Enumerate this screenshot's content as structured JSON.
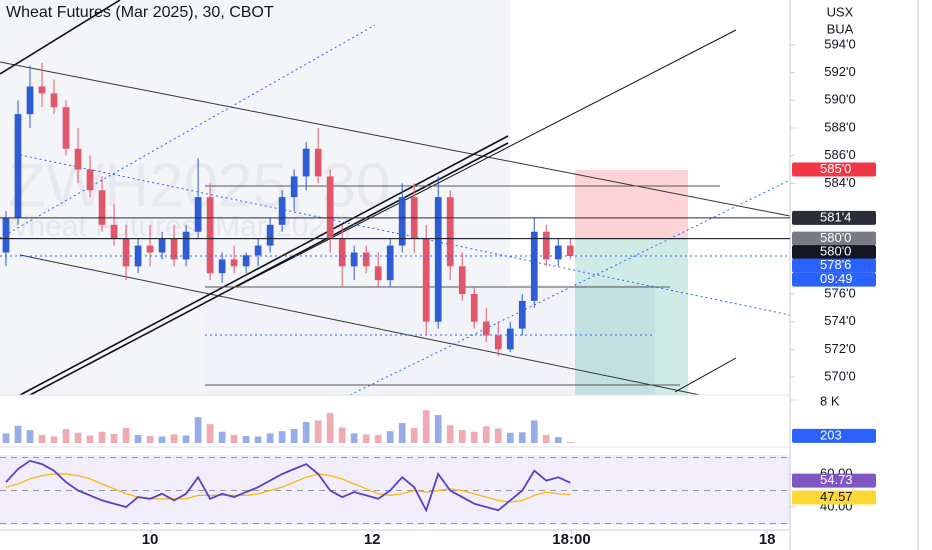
{
  "chart_data": {
    "type": "candlestick",
    "title": "Wheat Futures (Mar 2025), 30, CBOT",
    "watermark": [
      "ZWH2025, 30",
      "Wheat Futures (Mar 2025)"
    ],
    "axis_labels": [
      "USX",
      "BUA"
    ],
    "up_color": "#2f5bd3",
    "down_color": "#e0566a",
    "ohlc": [
      [
        579,
        582,
        578,
        581.5
      ],
      [
        581.5,
        590,
        581,
        589
      ],
      [
        589,
        592.5,
        588,
        591
      ],
      [
        591,
        592.7,
        589.5,
        590.5
      ],
      [
        590.5,
        591.5,
        589,
        589.5
      ],
      [
        589.5,
        590,
        586,
        586.5
      ],
      [
        586.5,
        588,
        584,
        585
      ],
      [
        585,
        586,
        583,
        583.5
      ],
      [
        583.5,
        584.5,
        580.5,
        581
      ],
      [
        581,
        582.5,
        579.5,
        580
      ],
      [
        580,
        581,
        577,
        578
      ],
      [
        578,
        580,
        577.5,
        579.5
      ],
      [
        579.5,
        581,
        578,
        579
      ],
      [
        579,
        580.5,
        578.5,
        580
      ],
      [
        580,
        581,
        578,
        578.5
      ],
      [
        578.5,
        581,
        578,
        580.5
      ],
      [
        580.5,
        585.8,
        580,
        583
      ],
      [
        583,
        584,
        577,
        577.5
      ],
      [
        577.5,
        579,
        576.8,
        578.5
      ],
      [
        578.5,
        579.5,
        577.5,
        578
      ],
      [
        578,
        579,
        577.5,
        578.8
      ],
      [
        578.8,
        580,
        578,
        579.5
      ],
      [
        579.5,
        581.5,
        579,
        581
      ],
      [
        581,
        583.5,
        580.5,
        583
      ],
      [
        583,
        585,
        582,
        584.5
      ],
      [
        584.5,
        587,
        583.5,
        586.5
      ],
      [
        586.5,
        588,
        584,
        584.5
      ],
      [
        584.5,
        585,
        579,
        580
      ],
      [
        580,
        581,
        576.5,
        578
      ],
      [
        578,
        579.5,
        577,
        579
      ],
      [
        579,
        579.5,
        577.5,
        578
      ],
      [
        578,
        579,
        576.5,
        577
      ],
      [
        577,
        580,
        576.5,
        579.5
      ],
      [
        579.5,
        584,
        579,
        583
      ],
      [
        583,
        584,
        579,
        580
      ],
      [
        580,
        581,
        573,
        574
      ],
      [
        574,
        584.5,
        573.5,
        583
      ],
      [
        583,
        583.5,
        577,
        578
      ],
      [
        578,
        579,
        575.5,
        576
      ],
      [
        576,
        576.5,
        573.5,
        574
      ],
      [
        574,
        575,
        572.5,
        573
      ],
      [
        573,
        574,
        571.5,
        572
      ],
      [
        572,
        574,
        571.8,
        573.5
      ],
      [
        573.5,
        576,
        573,
        575.5
      ],
      [
        575.5,
        581.5,
        575,
        580.5
      ],
      [
        580.5,
        581,
        578,
        578.5
      ],
      [
        578.5,
        580,
        578,
        579.5
      ],
      [
        579.5,
        580,
        578.5,
        578.75
      ]
    ],
    "ylim": [
      568.7,
      597.25
    ],
    "yticks": [
      {
        "value": 594,
        "label": "594'0"
      },
      {
        "value": 592,
        "label": "592'0"
      },
      {
        "value": 590,
        "label": "590'0"
      },
      {
        "value": 588,
        "label": "588'0"
      },
      {
        "value": 586,
        "label": "586'0"
      },
      {
        "value": 584,
        "label": "584'0"
      },
      {
        "value": 576,
        "label": "576'0"
      },
      {
        "value": 574,
        "label": "574'0"
      },
      {
        "value": 572,
        "label": "572'0"
      },
      {
        "value": 570,
        "label": "570'0"
      }
    ],
    "xlim": [
      -0.5,
      65.3
    ],
    "xticks": [
      {
        "value": 12,
        "label": "10"
      },
      {
        "value": 30.5,
        "label": "12"
      },
      {
        "value": 47.1,
        "label": "18:00"
      },
      {
        "value": 63.4,
        "label": "18"
      }
    ],
    "price_tags": [
      {
        "value": 585,
        "label": "585'0",
        "color": "#f23645"
      },
      {
        "value": 581.5,
        "label": "581'4",
        "color": "#2a2e39"
      },
      {
        "value": 580,
        "label": "580'0",
        "color": "#787b86"
      },
      {
        "value": 580,
        "label": "580'0",
        "color": "#131722"
      },
      {
        "value": 578.75,
        "label": "578'6",
        "color": "#2962ff"
      }
    ],
    "countdown": "09:49",
    "volume": {
      "values": [
        1800,
        3200,
        2400,
        1500,
        1200,
        2600,
        1900,
        1400,
        2100,
        1700,
        2800,
        1500,
        1300,
        1200,
        1600,
        1400,
        4800,
        3500,
        2100,
        1500,
        1300,
        1200,
        1800,
        2200,
        2600,
        3900,
        4200,
        5600,
        2900,
        1800,
        1600,
        1500,
        2200,
        3700,
        2800,
        6100,
        5200,
        3300,
        2400,
        2100,
        3100,
        2700,
        1900,
        2000,
        4200,
        1500,
        1100,
        203
      ],
      "ylim": [
        0,
        8560
      ],
      "yticks": [
        {
          "value": 8000,
          "label": "8 K"
        }
      ],
      "last": 203
    },
    "rsi": {
      "values": [
        55,
        63,
        68,
        66,
        62,
        55,
        50,
        47,
        44,
        42,
        40,
        46,
        45,
        48,
        44,
        48,
        58,
        45,
        48,
        46,
        49,
        52,
        56,
        60,
        63,
        66,
        60,
        50,
        46,
        49,
        47,
        45,
        50,
        58,
        52,
        38,
        60,
        50,
        46,
        42,
        40,
        38,
        44,
        50,
        62,
        56,
        58,
        54.73
      ],
      "ma": [
        52,
        54,
        57,
        59,
        60,
        60,
        59,
        57,
        54,
        51,
        48,
        46,
        45,
        45,
        45,
        45,
        47,
        47,
        47,
        47,
        47,
        48,
        50,
        52,
        55,
        58,
        60,
        59,
        57,
        54,
        51,
        48,
        47,
        48,
        50,
        49,
        50,
        51,
        50,
        48,
        46,
        44,
        43,
        44,
        47,
        49,
        48,
        47.57
      ],
      "ylim": [
        29.1,
        71.5
      ],
      "yticks": [
        {
          "value": 60,
          "label": "60.00"
        },
        {
          "value": 40,
          "label": "40.00"
        }
      ],
      "bands": [
        70,
        50,
        30
      ],
      "last": [
        54.73,
        47.57
      ]
    }
  }
}
